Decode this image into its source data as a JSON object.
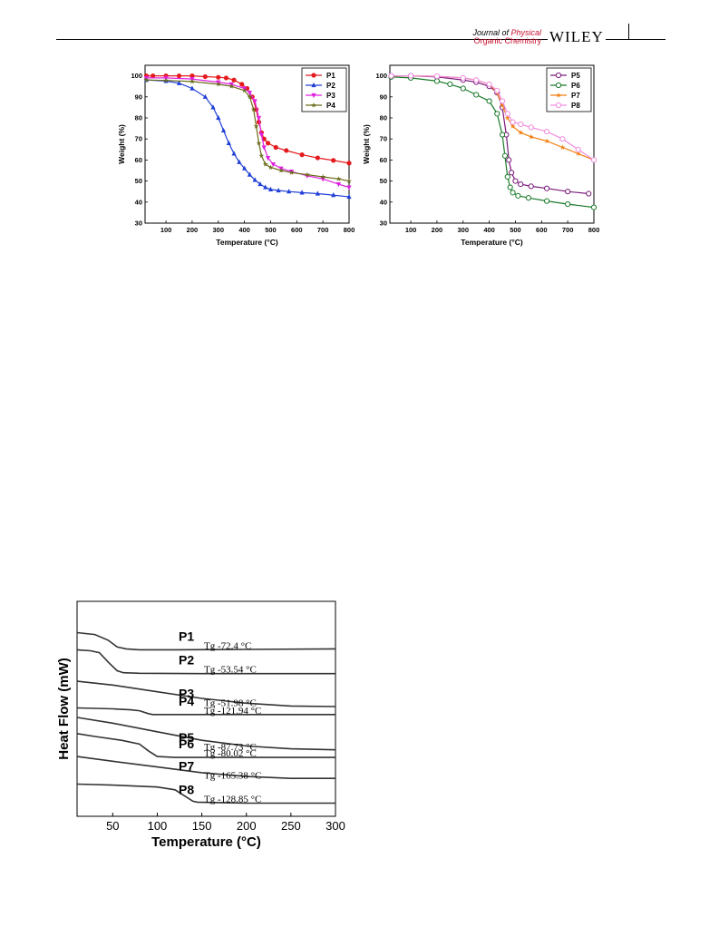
{
  "header": {
    "journal_line1_a": "Journal of ",
    "journal_line1_b": "Physical",
    "journal_line2": "Organic Chemistry",
    "publisher": "WILEY",
    "colors": {
      "rule": "#000000",
      "accent": "#c8102e"
    }
  },
  "chart_data": [
    {
      "type": "line",
      "xlabel": "Temperature (°C)",
      "ylabel": "Weight (%)",
      "xlim": [
        20,
        800
      ],
      "ylim": [
        30,
        105
      ],
      "xticks": [
        100,
        200,
        300,
        400,
        500,
        600,
        700,
        800
      ],
      "yticks": [
        30,
        40,
        50,
        60,
        70,
        80,
        90,
        100
      ],
      "legend": "top-right",
      "series": [
        {
          "name": "P1",
          "color": "#e41a1c",
          "marker": "circle",
          "x": [
            25,
            50,
            100,
            150,
            200,
            250,
            300,
            330,
            360,
            390,
            410,
            430,
            445,
            455,
            465,
            475,
            490,
            520,
            560,
            620,
            680,
            740,
            800
          ],
          "y": [
            100,
            100,
            100,
            100,
            100,
            99.6,
            99.3,
            99,
            98,
            96,
            94,
            90,
            84,
            78,
            73,
            70,
            68,
            66,
            64.5,
            62.5,
            61,
            59.8,
            58.5
          ]
        },
        {
          "name": "P2",
          "color": "#1f3fd6",
          "marker": "triangle",
          "x": [
            25,
            100,
            150,
            200,
            250,
            280,
            300,
            320,
            340,
            360,
            380,
            400,
            420,
            440,
            460,
            480,
            500,
            530,
            570,
            620,
            680,
            740,
            800
          ],
          "y": [
            98,
            97.5,
            96.5,
            94,
            90,
            85,
            80,
            74,
            68,
            63,
            59,
            56,
            53,
            50.5,
            48.5,
            47,
            46,
            45.5,
            45,
            44.5,
            44,
            43.3,
            42.5
          ]
        },
        {
          "name": "P3",
          "color": "#e020e0",
          "marker": "triangle-down",
          "x": [
            25,
            100,
            200,
            300,
            350,
            400,
            420,
            440,
            455,
            465,
            475,
            490,
            510,
            540,
            580,
            640,
            700,
            760,
            800
          ],
          "y": [
            99,
            99,
            98.5,
            97,
            96,
            94,
            92,
            88,
            80,
            72,
            66,
            61,
            58,
            56,
            54.5,
            52.5,
            51,
            48.5,
            47
          ]
        },
        {
          "name": "P4",
          "color": "#6b6b1a",
          "marker": "star",
          "x": [
            25,
            100,
            200,
            300,
            350,
            400,
            420,
            435,
            445,
            455,
            465,
            480,
            500,
            540,
            580,
            640,
            700,
            760,
            800
          ],
          "y": [
            98,
            97.8,
            97.3,
            96,
            95,
            93,
            90,
            84,
            76,
            68,
            62,
            58,
            56.5,
            55,
            54,
            53,
            52,
            51,
            50
          ]
        }
      ]
    },
    {
      "type": "line",
      "xlabel": "Temperature (°C)",
      "ylabel": "Weight (%)",
      "xlim": [
        20,
        800
      ],
      "ylim": [
        30,
        105
      ],
      "xticks": [
        100,
        200,
        300,
        400,
        500,
        600,
        700,
        800
      ],
      "yticks": [
        30,
        40,
        50,
        60,
        70,
        80,
        90,
        100
      ],
      "legend": "top-right",
      "series": [
        {
          "name": "P5",
          "color": "#7a1a7a",
          "marker": "circle-open",
          "x": [
            25,
            100,
            200,
            300,
            350,
            400,
            430,
            450,
            465,
            475,
            485,
            500,
            520,
            560,
            620,
            700,
            780
          ],
          "y": [
            100,
            100,
            99.5,
            98,
            97,
            95,
            92,
            85,
            72,
            60,
            54,
            50,
            48.5,
            47.5,
            46.5,
            45,
            44
          ]
        },
        {
          "name": "P6",
          "color": "#1a7a2a",
          "marker": "circle-open",
          "x": [
            25,
            100,
            200,
            250,
            300,
            350,
            400,
            430,
            450,
            460,
            470,
            480,
            490,
            510,
            550,
            620,
            700,
            800
          ],
          "y": [
            99.5,
            99,
            97.5,
            96,
            94,
            91,
            88,
            82,
            72,
            62,
            52,
            47,
            44.5,
            43,
            42,
            40.5,
            39,
            37.5
          ]
        },
        {
          "name": "P7",
          "color": "#f07f10",
          "marker": "star",
          "x": [
            25,
            100,
            200,
            300,
            350,
            400,
            430,
            450,
            470,
            490,
            520,
            560,
            620,
            680,
            740,
            800
          ],
          "y": [
            100,
            100,
            99.8,
            99,
            98,
            96,
            92,
            86,
            80,
            76,
            73,
            71,
            69,
            66,
            63,
            60
          ]
        },
        {
          "name": "P8",
          "color": "#f08ce0",
          "marker": "circle-open",
          "x": [
            25,
            100,
            200,
            300,
            350,
            400,
            430,
            450,
            470,
            490,
            520,
            560,
            620,
            680,
            740,
            800
          ],
          "y": [
            100,
            100,
            99.8,
            99,
            98,
            96,
            93,
            88,
            82,
            78,
            77,
            75.5,
            73.5,
            70,
            65,
            60
          ]
        }
      ]
    },
    {
      "type": "line",
      "xlabel": "Temperature (°C)",
      "ylabel": "Heat Flow (mW)",
      "xlim": [
        10,
        300
      ],
      "xticks": [
        50,
        100,
        150,
        200,
        250,
        300
      ],
      "yticks": [],
      "legend": "none",
      "series": [
        {
          "name": "P1",
          "annotation": "Tg -72.4 °C",
          "base": 8.55,
          "x": [
            10,
            30,
            45,
            55,
            65,
            80,
            120,
            200,
            300
          ],
          "y": [
            0.9,
            0.8,
            0.5,
            0.15,
            0.05,
            0,
            0,
            0.02,
            0.05
          ]
        },
        {
          "name": "P2",
          "annotation": "Tg -53.54 °C",
          "base": 7.3,
          "x": [
            10,
            25,
            35,
            45,
            55,
            62,
            80,
            150,
            300
          ],
          "y": [
            1.25,
            1.2,
            1.1,
            0.6,
            0.15,
            0.05,
            0.02,
            0,
            0
          ]
        },
        {
          "name": "P3",
          "annotation": "Tg -51.98 °C",
          "base": 5.55,
          "x": [
            10,
            50,
            100,
            150,
            200,
            250,
            300
          ],
          "y": [
            1.35,
            1.15,
            0.8,
            0.45,
            0.2,
            0.05,
            0.02
          ]
        },
        {
          "name": "P4",
          "annotation": "Tg -121.94 °C",
          "base": 5.15,
          "x": [
            10,
            50,
            70,
            80,
            90,
            95,
            100,
            150,
            300
          ],
          "y": [
            0.35,
            0.3,
            0.25,
            0.2,
            0.05,
            0,
            0,
            0,
            0
          ]
        },
        {
          "name": "P5",
          "annotation": "Tg -87.73 °C",
          "base": 3.25,
          "x": [
            10,
            50,
            100,
            150,
            200,
            250,
            300
          ],
          "y": [
            1.75,
            1.45,
            1.0,
            0.55,
            0.25,
            0.1,
            0.05
          ]
        },
        {
          "name": "P6",
          "annotation": "Tg -80.02 °C",
          "base": 2.9,
          "x": [
            10,
            30,
            60,
            80,
            90,
            100,
            120,
            300
          ],
          "y": [
            1.25,
            1.1,
            0.9,
            0.7,
            0.35,
            0.05,
            0,
            0
          ]
        },
        {
          "name": "P7",
          "annotation": "Tg -165.38 °C",
          "base": 1.75,
          "x": [
            10,
            50,
            100,
            150,
            200,
            250,
            300
          ],
          "y": [
            1.2,
            0.95,
            0.65,
            0.35,
            0.15,
            0.05,
            0.05
          ]
        },
        {
          "name": "P8",
          "annotation": "Tg -128.85 °C",
          "base": 0.5,
          "x": [
            10,
            50,
            100,
            120,
            130,
            140,
            145,
            200,
            300
          ],
          "y": [
            1.0,
            0.95,
            0.85,
            0.7,
            0.4,
            0.1,
            0.05,
            0,
            0
          ]
        }
      ]
    }
  ]
}
